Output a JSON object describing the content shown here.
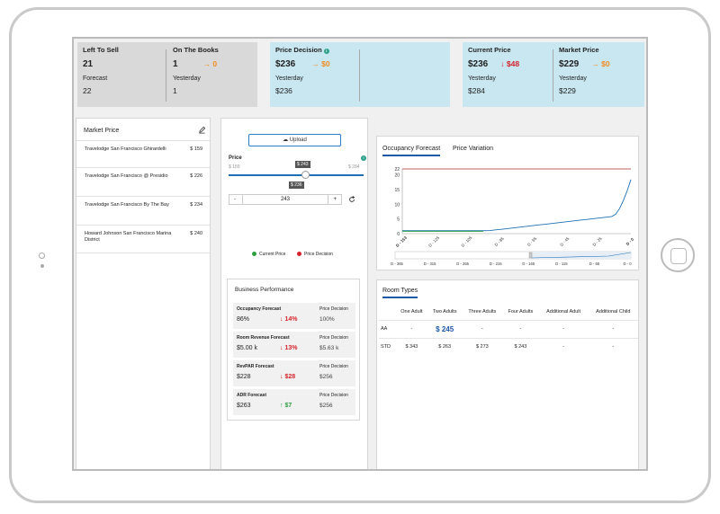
{
  "kpis": {
    "left_to_sell": {
      "label": "Left To Sell",
      "value": "21",
      "sub_label": "Forecast",
      "sub_value": "22"
    },
    "on_the_books": {
      "label": "On The Books",
      "value": "1",
      "change": "→ 0",
      "sub_label": "Yesterday",
      "sub_value": "1"
    },
    "price_decision": {
      "label": "Price Decision",
      "value": "$236",
      "change": "→ $0",
      "sub_label": "Yesterday",
      "sub_value": "$236"
    },
    "current_price": {
      "label": "Current Price",
      "value": "$236",
      "change": "↓ $48",
      "sub_label": "Yesterday",
      "sub_value": "$284"
    },
    "market_price": {
      "label": "Market Price",
      "value": "$229",
      "change": "→ $0",
      "sub_label": "Yesterday",
      "sub_value": "$229"
    }
  },
  "market_price_panel": {
    "title": "Market Price",
    "items": [
      {
        "name": "Travelodge San Francisco Ghirardelli",
        "price": "$ 159"
      },
      {
        "name": "Travelodge San Francisco @ Presidio",
        "price": "$ 226"
      },
      {
        "name": "Travelodge San Francisco By The Bay",
        "price": "$ 234"
      },
      {
        "name": "Howard Johnson San Francisco Marina District",
        "price": "$ 240"
      }
    ]
  },
  "pricing": {
    "upload_label": "Upload",
    "price_label": "Price",
    "min": "$ 189",
    "max": "$ 284",
    "current_flag": "$ 243",
    "decision_flag": "$ 236",
    "slider_fraction": 0.57,
    "stepper_value": "243",
    "minus": "-",
    "plus": "+",
    "legend_current": "Current Price",
    "legend_decision": "Price Decision",
    "green": "#2ea043",
    "red": "#d6232b"
  },
  "business_performance": {
    "title": "Business Performance",
    "cards": [
      {
        "title": "Occupancy Forecast",
        "value": "86%",
        "change": "↓ 14%",
        "pd_label": "Price Decision",
        "pd_value": "100%",
        "dir": "down"
      },
      {
        "title": "Room Revenue Forecast",
        "value": "$5.00 k",
        "change": "↓ 13%",
        "pd_label": "Price Decision",
        "pd_value": "$5.63 k",
        "dir": "down"
      },
      {
        "title": "RevPAR Forecast",
        "value": "$228",
        "change": "↓ $28",
        "pd_label": "Price Decision",
        "pd_value": "$256",
        "dir": "down"
      },
      {
        "title": "ADR Forecast",
        "value": "$263",
        "change": "↑ $7",
        "pd_label": "Price Decision",
        "pd_value": "$256",
        "dir": "up"
      }
    ]
  },
  "occupancy_chart": {
    "tabs": [
      "Occupancy Forecast",
      "Price Variation"
    ],
    "y_ticks": [
      "22",
      "20",
      "15",
      "10",
      "5",
      "0"
    ],
    "x_ticks": [
      "D - 153",
      "D - 125",
      "D - 105",
      "D - 85",
      "D - 65",
      "D - 45",
      "D - 25",
      "D - 0"
    ],
    "nav_ticks": [
      "D - 365",
      "D - 315",
      "D - 265",
      "D - 215",
      "D - 165",
      "D - 115",
      "D - 65",
      "D - 0"
    ],
    "capacity": 22,
    "line_color": "#1f6fb5",
    "capacity_color": "#b22a2a"
  },
  "room_types": {
    "tab": "Room Types",
    "columns": [
      "",
      "One Adult",
      "Two Adults",
      "Three Adults",
      "Four Adults",
      "Additional Adult",
      "Additional Child"
    ],
    "rows": [
      [
        "AA",
        "-",
        "$ 245",
        "-",
        "-",
        "-",
        "-"
      ],
      [
        "STD",
        "$ 343",
        "$ 263",
        "$ 273",
        "$ 243",
        "-",
        "-"
      ]
    ]
  }
}
